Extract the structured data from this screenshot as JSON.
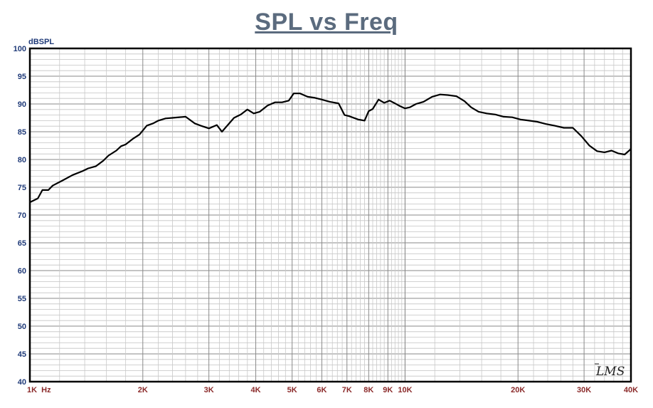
{
  "chart_data": {
    "type": "line",
    "title": "SPL vs Freq",
    "ylabel": "dBSPL",
    "xlabel": "",
    "x_scale": "log",
    "xlim": [
      1000,
      40000
    ],
    "ylim": [
      40,
      100
    ],
    "y_ticks": [
      100,
      95,
      90,
      85,
      80,
      75,
      70,
      65,
      60,
      55,
      50,
      45,
      40
    ],
    "x_ticks": [
      {
        "value": 1000,
        "label": "1K  Hz"
      },
      {
        "value": 2000,
        "label": "2K"
      },
      {
        "value": 3000,
        "label": "3K"
      },
      {
        "value": 4000,
        "label": "4K"
      },
      {
        "value": 5000,
        "label": "5K"
      },
      {
        "value": 6000,
        "label": "6K"
      },
      {
        "value": 7000,
        "label": "7K"
      },
      {
        "value": 8000,
        "label": "8K"
      },
      {
        "value": 9000,
        "label": "9K"
      },
      {
        "value": 10000,
        "label": "10K"
      },
      {
        "value": 20000,
        "label": "20K"
      },
      {
        "value": 30000,
        "label": "30K"
      },
      {
        "value": 40000,
        "label": "40K"
      }
    ],
    "grid": true,
    "series": [
      {
        "x": [
          1000,
          1050,
          1080,
          1120,
          1150,
          1220,
          1300,
          1380,
          1430,
          1500,
          1570,
          1620,
          1700,
          1750,
          1800,
          1880,
          1960,
          2050,
          2130,
          2200,
          2300,
          2400,
          2600,
          2750,
          2850,
          3000,
          3150,
          3250,
          3500,
          3650,
          3800,
          3950,
          4100,
          4300,
          4500,
          4700,
          4900,
          5050,
          5250,
          5500,
          5750,
          6000,
          6300,
          6650,
          6900,
          7100,
          7500,
          7800,
          8000,
          8200,
          8500,
          8800,
          9100,
          9400,
          9700,
          10000,
          10300,
          10700,
          11200,
          11800,
          12400,
          13000,
          13700,
          14400,
          15000,
          15700,
          16500,
          17400,
          18300,
          19300,
          20300,
          21400,
          22500,
          23700,
          25000,
          26500,
          28000,
          29500,
          31000,
          32500,
          34000,
          35500,
          37000,
          38500,
          40000
        ],
        "y": [
          72.3,
          73.0,
          74.5,
          74.5,
          75.3,
          76.2,
          77.2,
          77.9,
          78.4,
          78.8,
          79.8,
          80.7,
          81.6,
          82.4,
          82.7,
          83.7,
          84.5,
          86.1,
          86.5,
          87.0,
          87.4,
          87.5,
          87.7,
          86.5,
          86.1,
          85.6,
          86.2,
          85.0,
          87.5,
          88.1,
          89.0,
          88.3,
          88.6,
          89.7,
          90.3,
          90.3,
          90.6,
          91.9,
          91.9,
          91.3,
          91.1,
          90.8,
          90.4,
          90.1,
          88.0,
          87.8,
          87.2,
          87.0,
          88.7,
          89.1,
          90.8,
          90.2,
          90.6,
          90.1,
          89.6,
          89.2,
          89.4,
          90.0,
          90.4,
          91.3,
          91.7,
          91.6,
          91.4,
          90.5,
          89.4,
          88.6,
          88.3,
          88.1,
          87.7,
          87.6,
          87.2,
          87.0,
          86.8,
          86.4,
          86.1,
          85.7,
          85.7,
          84.2,
          82.5,
          81.5,
          81.3,
          81.6,
          81.1,
          80.9,
          81.9
        ]
      }
    ]
  },
  "logo_text": "LMS"
}
